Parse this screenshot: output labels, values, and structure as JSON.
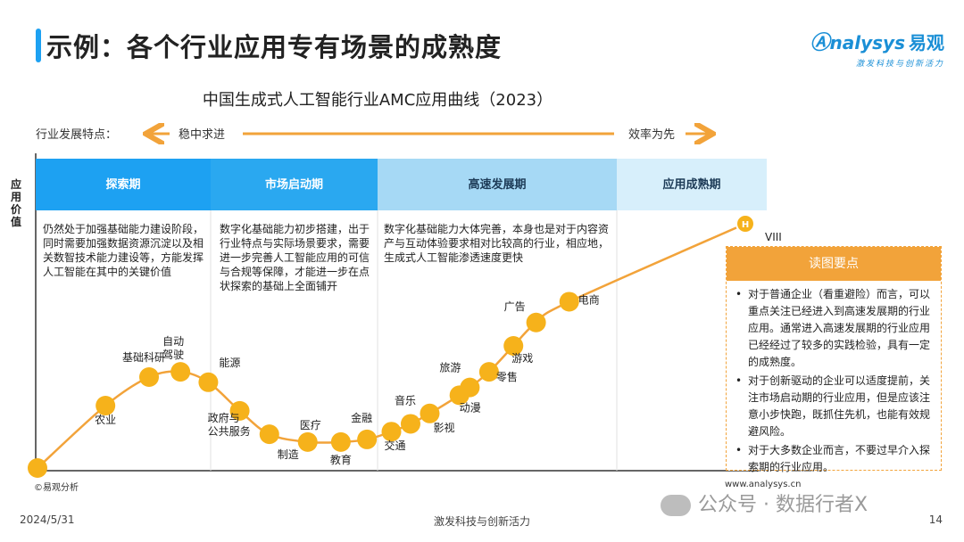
{
  "header": {
    "title": "示例：各个行业应用专有场景的成熟度"
  },
  "logo": {
    "main": "nalysys",
    "cn": "易观",
    "sub": "激发科技与创新活力"
  },
  "features": {
    "label": "行业发展特点：",
    "left": "稳中求进",
    "right": "效率为先"
  },
  "y_axis_label": "应用价值",
  "phases": [
    {
      "name": "探索期",
      "color": "#1da1f2",
      "text": "仍然处于加强基础能力建设阶段，同时需要加强数据资源沉淀以及相关数智技术能力建设等，方能发挥人工智能在其中的关键价值"
    },
    {
      "name": "市场启动期",
      "color": "#2aa8f0",
      "text": "数字化基础能力初步搭建，出于行业特点与实际场景要求，需要进一步完善人工智能应用的可信与合规等保障，才能进一步在点状探索的基础上全面铺开"
    },
    {
      "name": "高速发展期",
      "color": "#a6d9f5",
      "text": "数字化基础能力大体完善，本身也是对于内容资产与互动体验要求相对比较高的行业，相应地，生成式人工智能渗透速度更快"
    },
    {
      "name": "应用成熟期",
      "color": "#d7effb",
      "text": ""
    }
  ],
  "chart_data": {
    "type": "line",
    "title": "中国生成式人工智能行业AMC应用曲线（2023）",
    "ylabel": "应用价值",
    "points": [
      {
        "label": "",
        "x": 0.0,
        "y": 0.0
      },
      {
        "label": "农业",
        "x": 0.78,
        "y": 0.24
      },
      {
        "label": "基础科研",
        "x": 1.28,
        "y": 0.35
      },
      {
        "label": "自动驾驶",
        "x": 1.64,
        "y": 0.37
      },
      {
        "label": "能源",
        "x": 1.96,
        "y": 0.33
      },
      {
        "label": "政府与公共服务",
        "x": 2.32,
        "y": 0.22
      },
      {
        "label": "医疗",
        "x": 2.66,
        "y": 0.13
      },
      {
        "label": "制造",
        "x": 3.1,
        "y": 0.1
      },
      {
        "label": "教育",
        "x": 3.48,
        "y": 0.1
      },
      {
        "label": "金融",
        "x": 3.78,
        "y": 0.11
      },
      {
        "label": "交通",
        "x": 4.06,
        "y": 0.14
      },
      {
        "label": "音乐",
        "x": 4.28,
        "y": 0.17
      },
      {
        "label": "影视",
        "x": 4.5,
        "y": 0.21
      },
      {
        "label": "动漫",
        "x": 4.84,
        "y": 0.28
      },
      {
        "label": "旅游",
        "x": 4.96,
        "y": 0.31
      },
      {
        "label": "零售",
        "x": 5.18,
        "y": 0.37
      },
      {
        "label": "游戏",
        "x": 5.46,
        "y": 0.47
      },
      {
        "label": "广告",
        "x": 5.72,
        "y": 0.56
      },
      {
        "label": "电商",
        "x": 6.1,
        "y": 0.64
      },
      {
        "label": "H",
        "x": 8.12,
        "y": 0.94
      }
    ],
    "end_label": "VIII"
  },
  "read_box": {
    "title": "读图要点",
    "items": [
      "对于普通企业（看重避险）而言，可以重点关注已经进入到高速发展期的行业应用。通常进入高速发展期的行业应用已经经过了较多的实践检验，具有一定的成熟度。",
      "对于创新驱动的企业可以适度提前，关注市场启动期的行业应用，但是应该注意小步快跑，既抓住先机，也能有效规避风险。",
      "对于大多数企业而言，不要过早介入探索期的行业应用。"
    ]
  },
  "source": "©易观分析",
  "url": "www.analysys.cn",
  "footer": {
    "date": "2024/5/31",
    "slogan": "激发科技与创新活力",
    "page": "14"
  },
  "watermark": "公众号 · 数据行者X",
  "colors": {
    "accent": "#1da1f2",
    "curve": "#f2a33a",
    "point": "#f6b21b"
  }
}
